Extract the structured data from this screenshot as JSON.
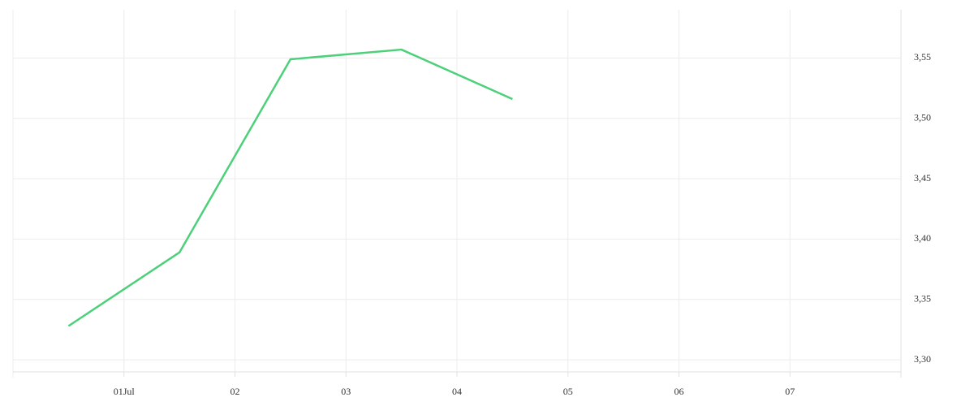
{
  "chart_data": {
    "type": "line",
    "x": [
      0.5,
      1.5,
      2.5,
      3.5,
      4.5
    ],
    "values": [
      3.328,
      3.389,
      3.549,
      3.557,
      3.516
    ],
    "color": "#4cd07a",
    "xlim": [
      0,
      8
    ],
    "xticks": [
      {
        "value": 1,
        "label": "01Jul"
      },
      {
        "value": 2,
        "label": "02"
      },
      {
        "value": 3,
        "label": "03"
      },
      {
        "value": 4,
        "label": "04"
      },
      {
        "value": 5,
        "label": "05"
      },
      {
        "value": 6,
        "label": "06"
      },
      {
        "value": 7,
        "label": "07"
      }
    ],
    "ylim": [
      3.29,
      3.59
    ],
    "yticks": [
      {
        "value": 3.3,
        "label": "3,30"
      },
      {
        "value": 3.35,
        "label": "3,35"
      },
      {
        "value": 3.4,
        "label": "3,40"
      },
      {
        "value": 3.45,
        "label": "3,45"
      },
      {
        "value": 3.5,
        "label": "3,50"
      },
      {
        "value": 3.55,
        "label": "3,55"
      }
    ],
    "grid": true
  }
}
